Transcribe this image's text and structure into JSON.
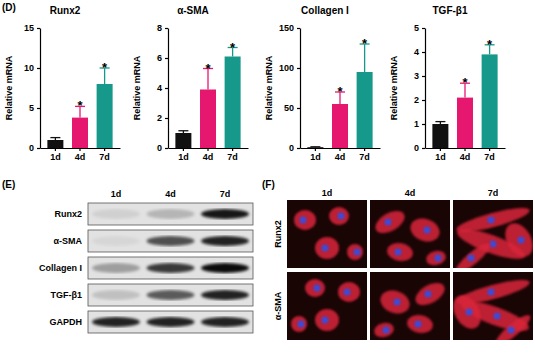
{
  "chart_data": [
    {
      "type": "bar",
      "title": "Runx2",
      "y_label": "Relative mRNA",
      "categories": [
        "1d",
        "4d",
        "7d"
      ],
      "values": [
        1,
        3.8,
        8
      ],
      "errors": [
        0.3,
        1.4,
        2
      ],
      "colors": [
        "#111111",
        "#e6176f",
        "#16998a"
      ],
      "ylim": [
        0,
        15
      ],
      "yticks": [
        0,
        5,
        10,
        15
      ],
      "annotations": [
        {
          "x": "4d",
          "text": "*"
        },
        {
          "x": "7d",
          "text": "*"
        }
      ]
    },
    {
      "type": "bar",
      "title": "α-SMA",
      "y_label": "Relative mRNA",
      "categories": [
        "1d",
        "4d",
        "7d"
      ],
      "values": [
        1,
        3.9,
        6.1
      ],
      "errors": [
        0.15,
        1.4,
        0.6
      ],
      "colors": [
        "#111111",
        "#e6176f",
        "#16998a"
      ],
      "ylim": [
        0,
        8
      ],
      "yticks": [
        0,
        2,
        4,
        6,
        8
      ],
      "annotations": [
        {
          "x": "4d",
          "text": "*"
        },
        {
          "x": "7d",
          "text": "*"
        }
      ]
    },
    {
      "type": "bar",
      "title": "Collagen I",
      "y_label": "Relative mRNA",
      "categories": [
        "1d",
        "4d",
        "7d"
      ],
      "values": [
        1,
        55,
        95
      ],
      "errors": [
        0.5,
        15,
        35
      ],
      "colors": [
        "#111111",
        "#e6176f",
        "#16998a"
      ],
      "ylim": [
        0,
        150
      ],
      "yticks": [
        0,
        50,
        100,
        150
      ],
      "annotations": [
        {
          "x": "4d",
          "text": "*"
        },
        {
          "x": "7d",
          "text": "*"
        }
      ]
    },
    {
      "type": "bar",
      "title": "TGF-β1",
      "y_label": "Relative mRNA",
      "categories": [
        "1d",
        "4d",
        "7d"
      ],
      "values": [
        1,
        2.1,
        3.9
      ],
      "errors": [
        0.1,
        0.6,
        0.4
      ],
      "colors": [
        "#111111",
        "#e6176f",
        "#16998a"
      ],
      "ylim": [
        0,
        5
      ],
      "yticks": [
        0,
        1,
        2,
        3,
        4,
        5
      ],
      "annotations": [
        {
          "x": "4d",
          "text": "*"
        },
        {
          "x": "7d",
          "text": "*"
        }
      ]
    }
  ],
  "panels": {
    "d": "(D)",
    "e": "(E)",
    "f": "(F)"
  },
  "blot": {
    "columns": [
      "1d",
      "4d",
      "7d"
    ],
    "rows": [
      {
        "label": "Runx2",
        "levels": [
          0.08,
          0.2,
          0.9
        ]
      },
      {
        "label": "α-SMA",
        "levels": [
          0.05,
          0.65,
          0.85
        ]
      },
      {
        "label": "Collagen I",
        "levels": [
          0.3,
          0.75,
          0.95
        ]
      },
      {
        "label": "TGF-β1",
        "levels": [
          0.15,
          0.6,
          0.85
        ]
      },
      {
        "label": "GAPDH",
        "levels": [
          0.85,
          0.85,
          0.85
        ]
      }
    ]
  },
  "images": {
    "columns": [
      "1d",
      "4d",
      "7d"
    ],
    "rows": [
      "Runx2",
      "α-SMA"
    ]
  }
}
